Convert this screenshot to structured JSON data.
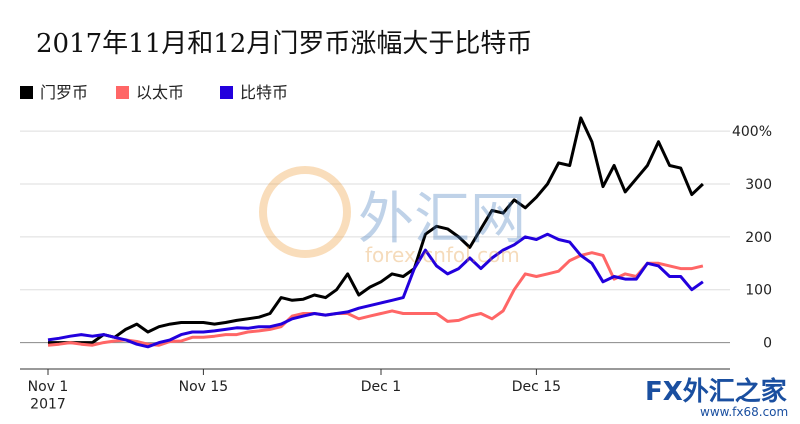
{
  "chart_data": {
    "type": "line",
    "title": "2017年11月和12月门罗币涨幅大于比特币",
    "x": [
      "2017-11-01",
      "2017-11-02",
      "2017-11-03",
      "2017-11-04",
      "2017-11-05",
      "2017-11-06",
      "2017-11-07",
      "2017-11-08",
      "2017-11-09",
      "2017-11-10",
      "2017-11-11",
      "2017-11-12",
      "2017-11-13",
      "2017-11-14",
      "2017-11-15",
      "2017-11-16",
      "2017-11-17",
      "2017-11-18",
      "2017-11-19",
      "2017-11-20",
      "2017-11-21",
      "2017-11-22",
      "2017-11-23",
      "2017-11-24",
      "2017-11-25",
      "2017-11-26",
      "2017-11-27",
      "2017-11-28",
      "2017-11-29",
      "2017-11-30",
      "2017-12-01",
      "2017-12-02",
      "2017-12-03",
      "2017-12-04",
      "2017-12-05",
      "2017-12-06",
      "2017-12-07",
      "2017-12-08",
      "2017-12-09",
      "2017-12-10",
      "2017-12-11",
      "2017-12-12",
      "2017-12-13",
      "2017-12-14",
      "2017-12-15",
      "2017-12-16",
      "2017-12-17",
      "2017-12-18",
      "2017-12-19",
      "2017-12-20",
      "2017-12-21",
      "2017-12-22",
      "2017-12-23",
      "2017-12-24",
      "2017-12-25",
      "2017-12-26",
      "2017-12-27",
      "2017-12-28",
      "2017-12-29",
      "2017-12-30"
    ],
    "series": [
      {
        "name": "门罗币",
        "color": "#000000",
        "values": [
          0,
          0,
          0,
          0,
          0,
          15,
          10,
          25,
          35,
          20,
          30,
          35,
          38,
          38,
          38,
          35,
          38,
          42,
          45,
          48,
          55,
          85,
          80,
          82,
          90,
          85,
          100,
          130,
          90,
          105,
          115,
          130,
          125,
          140,
          205,
          220,
          215,
          200,
          180,
          215,
          250,
          245,
          270,
          255,
          275,
          300,
          340,
          335,
          425,
          380,
          295,
          335,
          285,
          310,
          335,
          380,
          335,
          330,
          280,
          300
        ]
      },
      {
        "name": "以太币",
        "color": "#ff6666",
        "values": [
          -5,
          -3,
          0,
          -3,
          -5,
          0,
          3,
          5,
          2,
          -3,
          -5,
          2,
          3,
          10,
          10,
          12,
          15,
          15,
          20,
          22,
          25,
          30,
          50,
          55,
          55,
          52,
          55,
          55,
          45,
          50,
          55,
          60,
          55,
          55,
          55,
          55,
          40,
          42,
          50,
          55,
          45,
          60,
          100,
          130,
          125,
          130,
          135,
          155,
          165,
          170,
          165,
          120,
          130,
          125,
          150,
          150,
          145,
          140,
          140,
          145
        ]
      },
      {
        "name": "比特币",
        "color": "#2200dd",
        "values": [
          5,
          8,
          12,
          15,
          12,
          15,
          10,
          5,
          -3,
          -8,
          0,
          5,
          15,
          20,
          20,
          22,
          25,
          28,
          27,
          30,
          30,
          35,
          45,
          50,
          55,
          52,
          55,
          58,
          65,
          70,
          75,
          80,
          85,
          140,
          175,
          145,
          130,
          140,
          160,
          140,
          160,
          175,
          185,
          200,
          195,
          205,
          195,
          190,
          165,
          150,
          115,
          125,
          120,
          120,
          150,
          145,
          125,
          125,
          100,
          115
        ]
      }
    ],
    "ylim": [
      -50,
      440
    ],
    "yticks": [
      0,
      100,
      200,
      300,
      {
        "value": 400,
        "label": "400%"
      }
    ],
    "xticks": [
      {
        "value": "2017-11-01",
        "label": "Nov 1\n2017"
      },
      {
        "value": "2017-11-15",
        "label": "Nov 15"
      },
      {
        "value": "2017-12-01",
        "label": "Dec 1"
      },
      {
        "value": "2017-12-15",
        "label": "Dec 15"
      }
    ],
    "grid": true,
    "watermarks": [
      "外汇网",
      "forex.cnfol.com",
      "FX外汇之家",
      "www.fx68.com"
    ]
  }
}
